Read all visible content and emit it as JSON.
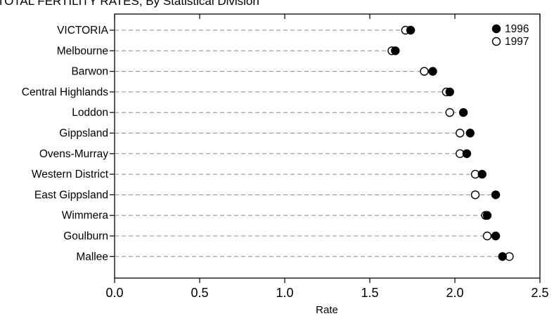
{
  "chart_data": {
    "type": "scatter",
    "title": "TOTAL FERTILITY RATES, By Statistical Division",
    "xlabel": "Rate",
    "ylabel": "",
    "xlim": [
      0.0,
      2.5
    ],
    "xticks": [
      "0.0",
      "0.5",
      "1.0",
      "1.5",
      "2.0",
      "2.5"
    ],
    "grid": "dashed leader lines per category",
    "legend_position": "top-right",
    "categories": [
      "VICTORIA",
      "Melbourne",
      "Barwon",
      "Central Highlands",
      "Loddon",
      "Gippsland",
      "Ovens-Murray",
      "Western District",
      "East Gippsland",
      "Wimmera",
      "Goulburn",
      "Mallee"
    ],
    "series": [
      {
        "name": "1996",
        "marker": "filled-circle",
        "color": "#000000",
        "values": [
          1.74,
          1.65,
          1.87,
          1.97,
          2.05,
          2.09,
          2.07,
          2.16,
          2.24,
          2.19,
          2.24,
          2.28
        ]
      },
      {
        "name": "1997",
        "marker": "open-circle",
        "color": "#000000",
        "values": [
          1.71,
          1.63,
          1.82,
          1.95,
          1.97,
          2.03,
          2.03,
          2.12,
          2.12,
          2.18,
          2.19,
          2.32
        ]
      }
    ]
  }
}
